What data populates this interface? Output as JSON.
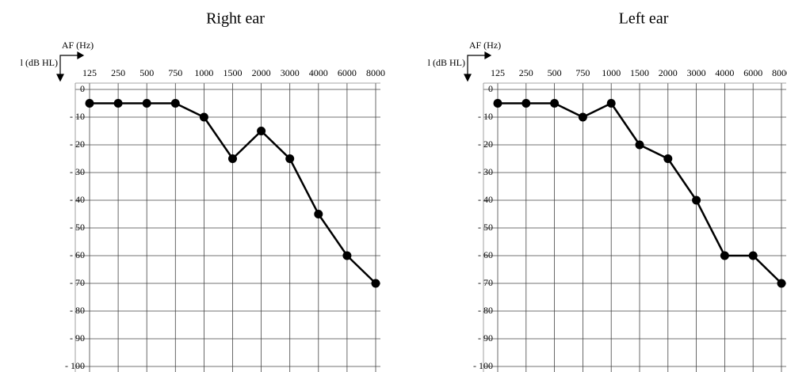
{
  "chart_data": [
    {
      "type": "line",
      "title": "Right ear",
      "x_label": "AF (Hz)",
      "y_label": "l (dB HL)",
      "categories": [
        "125",
        "250",
        "500",
        "750",
        "1000",
        "1500",
        "2000",
        "3000",
        "4000",
        "6000",
        "8000"
      ],
      "values": [
        -5,
        -5,
        -5,
        -5,
        -10,
        -25,
        -15,
        -25,
        -45,
        -60,
        -70
      ],
      "color": "#000000",
      "ylim": [
        -100,
        0
      ],
      "yticks": [
        0,
        {
          "value": -10,
          "label": "- 10"
        },
        {
          "value": -20,
          "label": "- 20"
        },
        {
          "value": -30,
          "label": "- 30"
        },
        {
          "value": -40,
          "label": "- 40"
        },
        {
          "value": -50,
          "label": "- 50"
        },
        {
          "value": -60,
          "label": "- 60"
        },
        {
          "value": -70,
          "label": "- 70"
        },
        {
          "value": -80,
          "label": "- 80"
        },
        {
          "value": -90,
          "label": "- 90"
        },
        {
          "value": -100,
          "label": "- 100"
        }
      ],
      "grid": true
    },
    {
      "type": "line",
      "title": "Left ear",
      "x_label": "AF (Hz)",
      "y_label": "l (dB HL)",
      "categories": [
        "125",
        "250",
        "500",
        "750",
        "1000",
        "1500",
        "2000",
        "3000",
        "4000",
        "6000",
        "8000"
      ],
      "values": [
        -5,
        -5,
        -5,
        -10,
        -5,
        -20,
        -25,
        -40,
        -60,
        -60,
        -70
      ],
      "color": "#000000",
      "ylim": [
        -100,
        0
      ],
      "yticks": [
        0,
        {
          "value": -10,
          "label": "- 10"
        },
        {
          "value": -20,
          "label": "- 20"
        },
        {
          "value": -30,
          "label": "- 30"
        },
        {
          "value": -40,
          "label": "- 40"
        },
        {
          "value": -50,
          "label": "- 50"
        },
        {
          "value": -60,
          "label": "- 60"
        },
        {
          "value": -70,
          "label": "- 70"
        },
        {
          "value": -80,
          "label": "- 80"
        },
        {
          "value": -90,
          "label": "- 90"
        },
        {
          "value": -100,
          "label": "- 100"
        }
      ],
      "grid": true
    }
  ]
}
